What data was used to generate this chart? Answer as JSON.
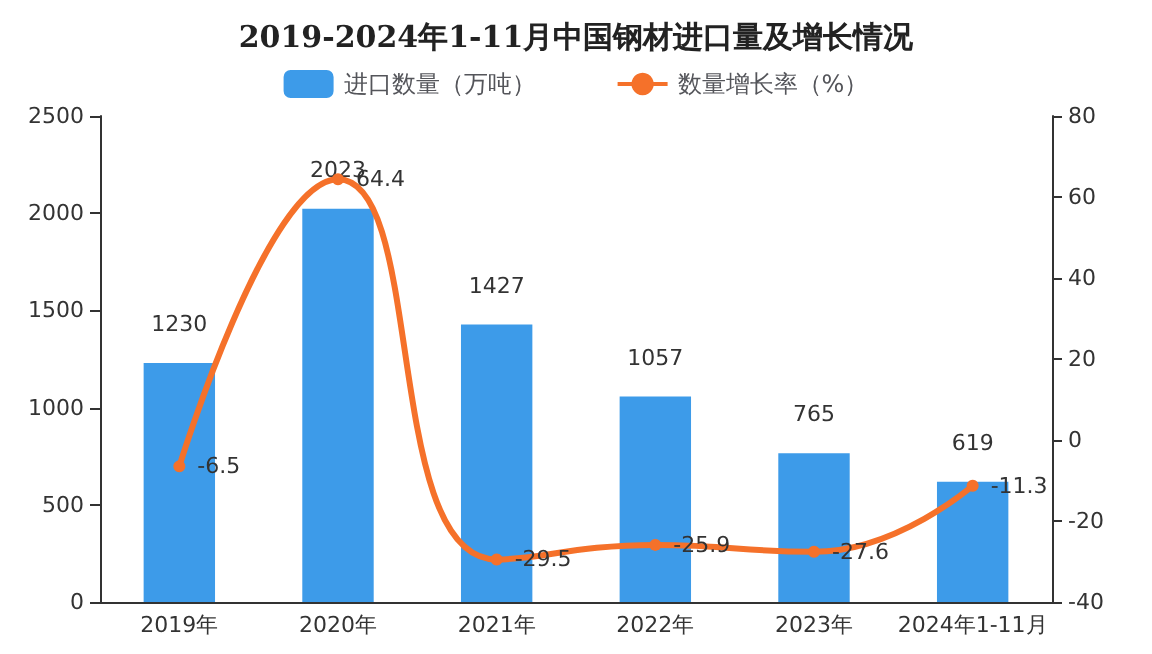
{
  "chart_data": {
    "type": "bar",
    "title": "2019-2024年1-11月中国钢材进口量及增长情况",
    "categories": [
      "2019年",
      "2020年",
      "2021年",
      "2022年",
      "2023年",
      "2024年1-11月"
    ],
    "series": [
      {
        "name": "进口数量（万吨）",
        "color": "#3d9be9",
        "values": [
          1230,
          2023,
          1427,
          1057,
          765,
          619
        ]
      },
      {
        "name": "数量增长率（%）",
        "type": "line",
        "axis": "y2",
        "color": "#f5712a",
        "values": [
          -6.5,
          64.4,
          -29.5,
          -25.9,
          -27.6,
          -11.3
        ]
      }
    ],
    "ylim": [
      0,
      2500
    ],
    "yticks": [
      0,
      500,
      1000,
      1500,
      2000,
      2500
    ],
    "y2lim": [
      -40,
      80
    ],
    "y2ticks": [
      -40,
      -20,
      0,
      20,
      40,
      60,
      80
    ],
    "data_labels": true,
    "legend": "top",
    "marker": "circle",
    "grid": false
  }
}
